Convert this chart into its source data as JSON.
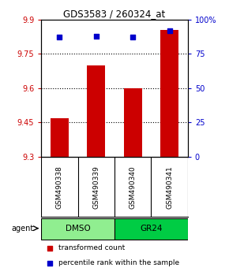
{
  "title": "GDS3583 / 260324_at",
  "samples": [
    "GSM490338",
    "GSM490339",
    "GSM490340",
    "GSM490341"
  ],
  "red_values": [
    9.47,
    9.7,
    9.6,
    9.855
  ],
  "blue_values": [
    87,
    88,
    87,
    92
  ],
  "ylim_left": [
    9.3,
    9.9
  ],
  "ylim_right": [
    0,
    100
  ],
  "yticks_left": [
    9.3,
    9.45,
    9.6,
    9.75,
    9.9
  ],
  "ytick_labels_left": [
    "9.3",
    "9.45",
    "9.6",
    "9.75",
    "9.9"
  ],
  "yticks_right": [
    0,
    25,
    50,
    75,
    100
  ],
  "ytick_labels_right": [
    "0",
    "25",
    "50",
    "75",
    "100%"
  ],
  "grid_yticks": [
    9.45,
    9.6,
    9.75
  ],
  "groups": [
    {
      "label": "DMSO",
      "start": 0,
      "end": 2,
      "color": "#90EE90"
    },
    {
      "label": "GR24",
      "start": 2,
      "end": 4,
      "color": "#00CC44"
    }
  ],
  "group_label": "agent",
  "bar_color": "#CC0000",
  "dot_color": "#0000CC",
  "legend_bar_label": "transformed count",
  "legend_dot_label": "percentile rank within the sample",
  "bar_width": 0.5,
  "background_color": "#ffffff",
  "sample_bg": "#D3D3D3"
}
